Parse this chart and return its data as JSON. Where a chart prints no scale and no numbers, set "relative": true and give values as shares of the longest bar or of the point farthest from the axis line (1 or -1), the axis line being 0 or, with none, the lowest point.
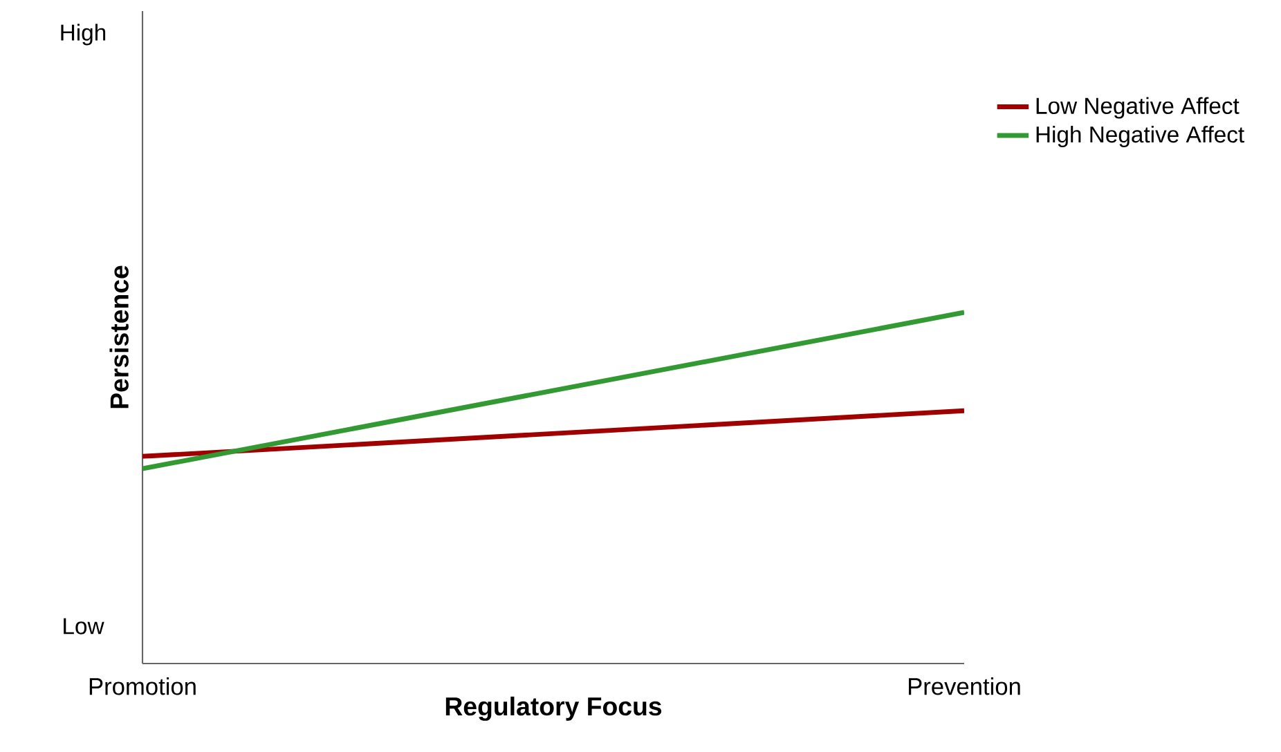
{
  "chart_data": {
    "type": "line",
    "xlabel": "Regulatory Focus",
    "ylabel": "Persistence",
    "relative": true,
    "categories": [
      "Promotion",
      "Prevention"
    ],
    "series": [
      {
        "name": "Low Negative Affect",
        "color": "#a00000",
        "values": [
          0.59,
          0.72
        ]
      },
      {
        "name": "High Negative Affect",
        "color": "#339933",
        "values": [
          0.555,
          1
        ]
      }
    ],
    "annotations": [
      "High",
      "Low"
    ],
    "legend": "top right",
    "marker": "none",
    "line_style": "solid"
  }
}
